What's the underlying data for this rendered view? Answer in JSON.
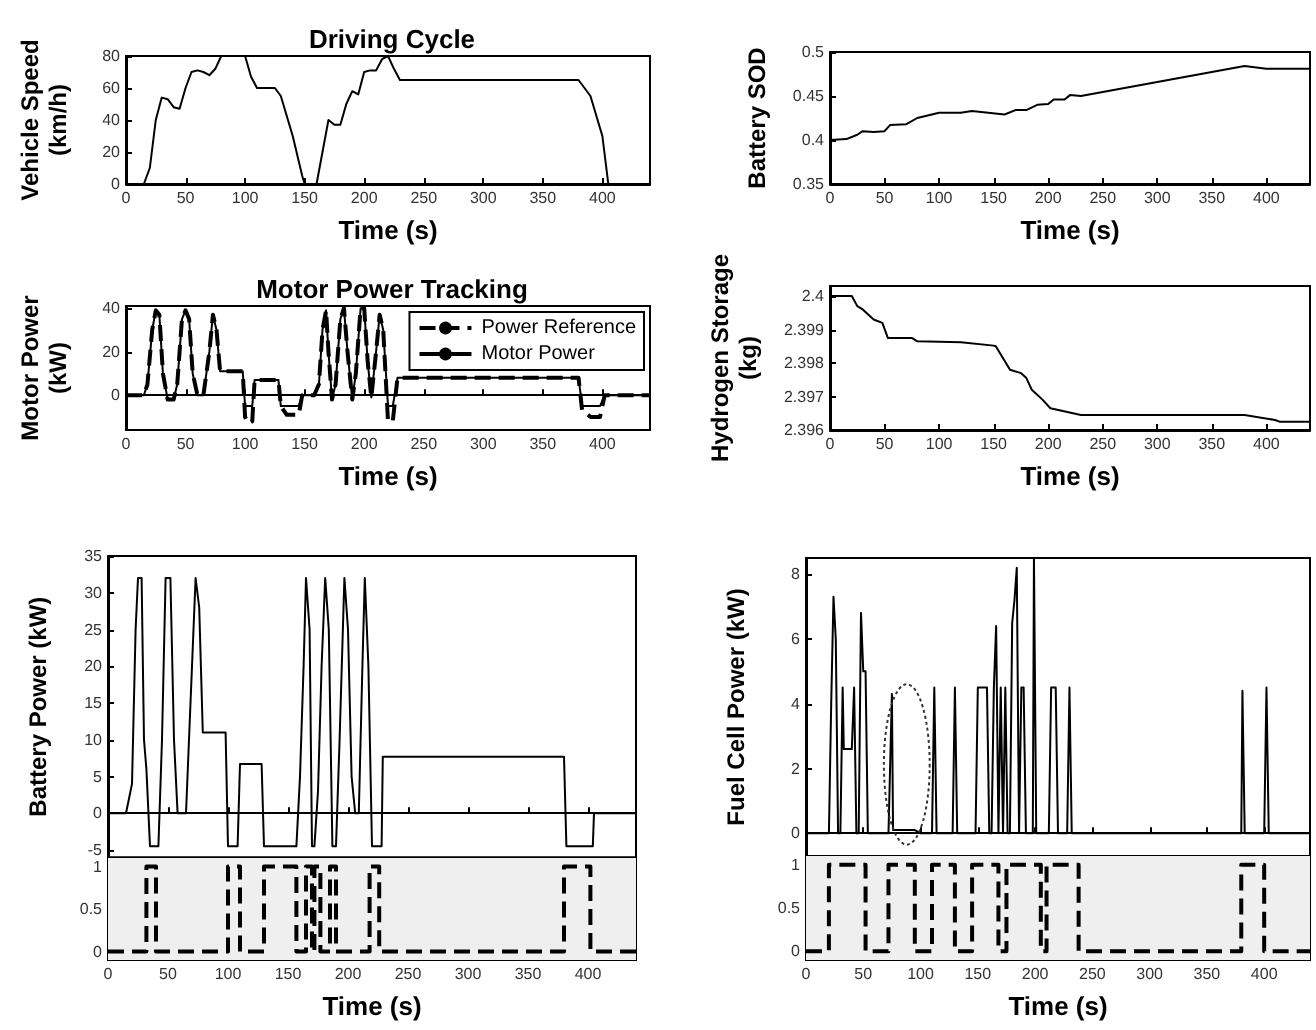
{
  "chart_data": [
    {
      "type": "line",
      "title": "Driving Cycle",
      "xlabel": "Time (s)",
      "ylabel": "Vehicle Speed\n(km/h)",
      "xlim": [
        0,
        440
      ],
      "xticks": [
        0,
        50,
        100,
        150,
        200,
        250,
        300,
        350,
        400
      ],
      "ylim": [
        0,
        80
      ],
      "yticks": [
        0,
        20,
        40,
        60,
        80
      ],
      "x": [
        0,
        15,
        20,
        25,
        30,
        35,
        40,
        45,
        50,
        55,
        60,
        65,
        70,
        75,
        80,
        100,
        105,
        110,
        125,
        130,
        140,
        148,
        150,
        160,
        165,
        170,
        175,
        180,
        185,
        190,
        195,
        200,
        205,
        210,
        215,
        220,
        225,
        230,
        380,
        390,
        400,
        405
      ],
      "series": [
        {
          "color": "#000000",
          "values": [
            0,
            0,
            10,
            40,
            54,
            53,
            48,
            47,
            60,
            70,
            71,
            70,
            68,
            72,
            80,
            80,
            67,
            60,
            60,
            55,
            30,
            5,
            0,
            0,
            20,
            40,
            37,
            37,
            50,
            58,
            56,
            70,
            71,
            71,
            78,
            80,
            72,
            65,
            65,
            55,
            30,
            0
          ]
        }
      ]
    },
    {
      "type": "line",
      "title": "Motor Power Tracking",
      "xlabel": "Time (s)",
      "ylabel": "Motor Power\n(kW)",
      "xlim": [
        0,
        440
      ],
      "xticks": [
        0,
        50,
        100,
        150,
        200,
        250,
        300,
        350,
        400
      ],
      "ylim": [
        -16,
        41
      ],
      "yticks": [
        0,
        20,
        40
      ],
      "legend": "top right",
      "x": [
        0,
        15,
        18,
        22,
        25,
        28,
        31,
        35,
        40,
        43,
        47,
        50,
        53,
        56,
        60,
        65,
        70,
        73,
        76,
        79,
        98,
        100,
        103,
        106,
        108,
        120,
        128,
        130,
        135,
        145,
        148,
        158,
        162,
        165,
        168,
        170,
        173,
        176,
        180,
        183,
        186,
        190,
        193,
        197,
        200,
        203,
        206,
        210,
        213,
        216,
        220,
        224,
        228,
        380,
        383,
        390,
        398,
        402,
        440
      ],
      "series": [
        {
          "name": "Power Reference",
          "color": "#000000",
          "line_style": "dashed",
          "values": [
            0,
            0,
            5,
            30,
            39,
            37,
            10,
            -2,
            -2,
            5,
            35,
            39,
            35,
            10,
            0,
            0,
            20,
            37,
            30,
            11,
            11,
            -10,
            -13,
            -12,
            7,
            7,
            7,
            -5,
            -9,
            -9,
            0,
            0,
            5,
            30,
            39,
            20,
            -2,
            5,
            35,
            40,
            20,
            -2,
            10,
            40,
            40,
            15,
            -1,
            20,
            37,
            30,
            -12,
            -12,
            8,
            8,
            -7,
            -10,
            -10,
            0,
            0
          ]
        },
        {
          "name": "Motor Power",
          "color": "#000000",
          "line_style": "solid",
          "values": [
            0,
            0,
            5,
            30,
            39,
            37,
            10,
            -2,
            -2,
            5,
            35,
            39,
            35,
            10,
            0,
            0,
            20,
            37,
            30,
            11,
            11,
            -5,
            -5,
            -5,
            7,
            7,
            7,
            -5,
            -5,
            -5,
            0,
            0,
            5,
            30,
            39,
            20,
            -2,
            5,
            35,
            40,
            20,
            -2,
            10,
            40,
            40,
            15,
            -1,
            20,
            37,
            30,
            -5,
            -5,
            8,
            8,
            -5,
            -5,
            -5,
            0,
            0
          ]
        }
      ]
    },
    {
      "type": "line",
      "xlabel": "Time (s)",
      "ylabel": "Battery SOD",
      "xlim": [
        0,
        440
      ],
      "xticks": [
        0,
        50,
        100,
        150,
        200,
        250,
        300,
        350,
        400
      ],
      "ylim": [
        0.35,
        0.5
      ],
      "yticks": [
        0.35,
        0.4,
        0.45,
        0.5
      ],
      "x": [
        0,
        15,
        25,
        30,
        40,
        50,
        55,
        70,
        80,
        100,
        120,
        130,
        160,
        170,
        180,
        190,
        200,
        205,
        215,
        220,
        230,
        380,
        400,
        440
      ],
      "series": [
        {
          "color": "#000000",
          "values": [
            0.4,
            0.401,
            0.406,
            0.41,
            0.409,
            0.41,
            0.417,
            0.418,
            0.425,
            0.431,
            0.431,
            0.433,
            0.429,
            0.434,
            0.434,
            0.44,
            0.441,
            0.446,
            0.446,
            0.451,
            0.45,
            0.484,
            0.481,
            0.481
          ]
        }
      ]
    },
    {
      "type": "line",
      "xlabel": "Time (s)",
      "ylabel": "Hydrogen Storage\n(kg)",
      "xlim": [
        0,
        440
      ],
      "xticks": [
        0,
        50,
        100,
        150,
        200,
        250,
        300,
        350,
        400
      ],
      "ylim": [
        2.396,
        2.4003
      ],
      "yticks": [
        2.396,
        2.397,
        2.398,
        2.399,
        2.4
      ],
      "x": [
        0,
        20,
        25,
        30,
        40,
        48,
        53,
        75,
        80,
        120,
        150,
        152,
        165,
        175,
        180,
        185,
        195,
        202,
        230,
        380,
        408,
        412,
        440
      ],
      "series": [
        {
          "color": "#000000",
          "values": [
            2.4,
            2.4,
            2.3997,
            2.3996,
            2.3993,
            2.3992,
            2.39875,
            2.39875,
            2.39865,
            2.39862,
            2.39852,
            2.3985,
            2.3978,
            2.3977,
            2.39755,
            2.3972,
            2.3969,
            2.39665,
            2.39645,
            2.39645,
            2.3963,
            2.39625,
            2.39625
          ]
        }
      ]
    },
    {
      "type": "line",
      "ylabel": "Battery Power (kW)",
      "xlim": [
        0,
        440
      ],
      "xticks": [
        0,
        50,
        100,
        150,
        200,
        250,
        300,
        350,
        400
      ],
      "ylim": [
        -6,
        35
      ],
      "yticks": [
        -5,
        0,
        5,
        10,
        15,
        20,
        25,
        30,
        35
      ],
      "tick_labels": "y",
      "x": [
        0,
        15,
        20,
        23,
        25,
        28,
        30,
        32,
        35,
        42,
        45,
        48,
        52,
        55,
        58,
        65,
        70,
        73,
        76,
        79,
        98,
        100,
        108,
        110,
        120,
        128,
        130,
        157,
        160,
        163,
        165,
        168,
        170,
        172,
        175,
        178,
        181,
        184,
        187,
        190,
        193,
        197,
        200,
        203,
        206,
        209,
        212,
        214,
        217,
        220,
        228,
        229,
        380,
        382,
        404,
        405,
        440
      ],
      "series": [
        {
          "color": "#000000",
          "values": [
            0,
            0,
            4,
            25,
            32,
            32,
            10,
            6,
            -4.5,
            -4.5,
            10,
            32,
            32,
            10,
            0,
            0,
            20,
            32,
            28,
            11,
            11,
            -4.5,
            -4.5,
            6.7,
            6.7,
            6.7,
            -4.5,
            -4.5,
            5,
            20,
            32,
            25,
            -4.5,
            -4.5,
            3,
            20,
            32,
            25,
            -4.5,
            -4.5,
            10,
            32,
            25,
            5,
            0,
            0,
            20,
            32,
            20,
            -4.5,
            -4.5,
            7.7,
            7.7,
            -4.5,
            -4.5,
            0,
            0
          ]
        }
      ]
    },
    {
      "type": "line",
      "xlabel": "Time (s)",
      "xlim": [
        0,
        440
      ],
      "xticks": [
        0,
        50,
        100,
        150,
        200,
        250,
        300,
        350,
        400
      ],
      "ylim": [
        -0.1,
        1.1
      ],
      "yticks": [
        0,
        0.5,
        1
      ],
      "bands": [
        {
          "axis": "y",
          "from": -0.1,
          "to": 1.1,
          "color": "#efefef"
        }
      ],
      "x": [
        0,
        32,
        32,
        40,
        40,
        100,
        100,
        110,
        110,
        130,
        130,
        157,
        157,
        165,
        165,
        170,
        170,
        172,
        172,
        177,
        177,
        185,
        185,
        190,
        190,
        218,
        218,
        226,
        226,
        380,
        380,
        402,
        402,
        440
      ],
      "series": [
        {
          "color": "#000000",
          "line_style": "dashed",
          "values": [
            0,
            0,
            1,
            1,
            0,
            0,
            1,
            1,
            0,
            0,
            1,
            1,
            0,
            0,
            1,
            1,
            0,
            0,
            1,
            1,
            0,
            0,
            1,
            1,
            0,
            0,
            1,
            1,
            0,
            0,
            1,
            1,
            0,
            0
          ]
        }
      ]
    },
    {
      "type": "line",
      "ylabel": "Fuel Cell Power (kW)",
      "xlim": [
        0,
        440
      ],
      "xticks": [
        0,
        50,
        100,
        150,
        200,
        250,
        300,
        350,
        400
      ],
      "ylim": [
        -0.7,
        8.5
      ],
      "yticks": [
        0,
        2,
        4,
        6,
        8
      ],
      "tick_labels": "y",
      "x": [
        0,
        20,
        22,
        24,
        26,
        28,
        30,
        32,
        33,
        40,
        42,
        44,
        46,
        48,
        50,
        52,
        54,
        72,
        75,
        76,
        95,
        100,
        110,
        112,
        114,
        128,
        130,
        132,
        148,
        150,
        158,
        160,
        162,
        164,
        166,
        168,
        170,
        172,
        174,
        176,
        178,
        180,
        182,
        184,
        186,
        188,
        190,
        192,
        198,
        199,
        201,
        212,
        214,
        218,
        220,
        228,
        230,
        232,
        380,
        381,
        383,
        400,
        402,
        404,
        440
      ],
      "series": [
        {
          "color": "#000000",
          "values": [
            0,
            0,
            4,
            7.3,
            6,
            0,
            0,
            4.5,
            2.6,
            2.6,
            4.5,
            0,
            0,
            6.8,
            5,
            5,
            0,
            0,
            4.3,
            0.1,
            0.1,
            0,
            0,
            4.5,
            0,
            0,
            4.5,
            0,
            0,
            4.5,
            4.5,
            0,
            0,
            4.5,
            6.4,
            0,
            4.5,
            0,
            4.5,
            0,
            0,
            6.5,
            7.2,
            8.2,
            0,
            4.5,
            4.5,
            0,
            0,
            8.5,
            0,
            0,
            4.5,
            4.5,
            0,
            0,
            4.5,
            0,
            0,
            4.4,
            0,
            0,
            4.5,
            0,
            0
          ]
        }
      ]
    },
    {
      "type": "line",
      "xlabel": "Time (s)",
      "xlim": [
        0,
        440
      ],
      "xticks": [
        0,
        50,
        100,
        150,
        200,
        250,
        300,
        350,
        400
      ],
      "ylim": [
        -0.1,
        1.1
      ],
      "yticks": [
        0,
        0.5,
        1
      ],
      "bands": [
        {
          "axis": "y",
          "from": -0.1,
          "to": 1.1,
          "color": "#efefef"
        }
      ],
      "x": [
        0,
        20,
        20,
        52,
        52,
        72,
        72,
        95,
        95,
        110,
        110,
        130,
        130,
        145,
        145,
        168,
        168,
        175,
        175,
        205,
        205,
        210,
        210,
        238,
        238,
        380,
        380,
        400,
        400,
        440
      ],
      "series": [
        {
          "color": "#000000",
          "line_style": "dashed",
          "values": [
            0,
            0,
            1,
            1,
            0,
            0,
            1,
            1,
            0,
            0,
            1,
            1,
            0,
            0,
            1,
            1,
            0,
            0,
            1,
            1,
            0,
            0,
            1,
            1,
            0,
            0,
            1,
            1,
            0,
            0
          ]
        }
      ]
    }
  ]
}
